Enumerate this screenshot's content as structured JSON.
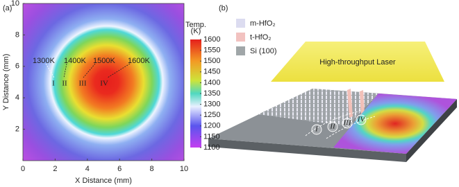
{
  "panel_labels": [
    "(a)",
    "(b)"
  ],
  "chart_data": {
    "type": "heatmap",
    "xlabel": "X Distance (mm)",
    "ylabel": "Y Distance (mm)",
    "xlim": [
      0,
      10
    ],
    "ylim": [
      0,
      10
    ],
    "xticks": [
      0,
      2,
      4,
      6,
      8,
      10
    ],
    "yticks": [
      2,
      4,
      6,
      8,
      10
    ],
    "colorbar": {
      "title": [
        "Temp.",
        "(K)"
      ],
      "lim": [
        1100,
        1600
      ],
      "ticks": [
        1100,
        1150,
        1200,
        1250,
        1300,
        1350,
        1400,
        1450,
        1500,
        1550,
        1600
      ]
    },
    "annotations": {
      "isotherms": [
        "1300K",
        "1400K",
        "1500K",
        "1600K"
      ],
      "zones": [
        "I",
        "II",
        "III",
        "IV"
      ]
    }
  },
  "schematic": {
    "legend": [
      "m-HfO₂",
      "t-HfO₂",
      "Si (100)"
    ],
    "laser": "High-throughput Laser",
    "zones": [
      "I",
      "II",
      "III",
      "IV"
    ]
  }
}
